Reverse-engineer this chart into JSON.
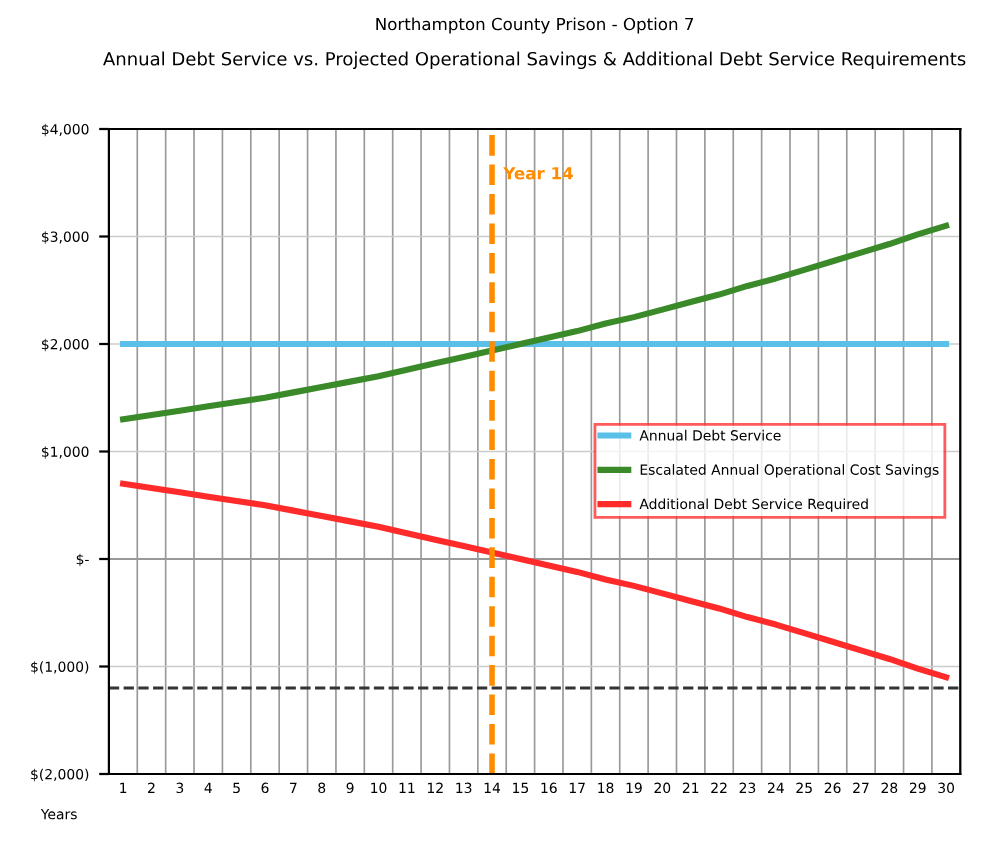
{
  "chart_data": {
    "type": "line",
    "title": "Northampton County Prison - Option 7",
    "subtitle": "Annual Debt Service vs. Projected Operational Savings & Additional Debt Service Requirements",
    "xlabel": "Years",
    "categories": [
      "1",
      "2",
      "3",
      "4",
      "5",
      "6",
      "7",
      "8",
      "9",
      "10",
      "11",
      "12",
      "13",
      "14",
      "15",
      "16",
      "17",
      "18",
      "19",
      "20",
      "21",
      "22",
      "23",
      "24",
      "25",
      "26",
      "27",
      "28",
      "29",
      "30"
    ],
    "series": [
      {
        "name": "Annual Debt Service",
        "color": "#5bc0e8",
        "values": [
          2000,
          2000,
          2000,
          2000,
          2000,
          2000,
          2000,
          2000,
          2000,
          2000,
          2000,
          2000,
          2000,
          2000,
          2000,
          2000,
          2000,
          2000,
          2000,
          2000,
          2000,
          2000,
          2000,
          2000,
          2000,
          2000,
          2000,
          2000,
          2000,
          2000
        ]
      },
      {
        "name": "Escalated Annual Operational Cost Savings",
        "color": "#3a8a2a",
        "values": [
          1300,
          1340,
          1380,
          1420,
          1460,
          1500,
          1550,
          1600,
          1650,
          1700,
          1760,
          1820,
          1880,
          1940,
          2000,
          2060,
          2120,
          2190,
          2250,
          2320,
          2390,
          2460,
          2540,
          2610,
          2690,
          2770,
          2850,
          2930,
          3020,
          3100
        ]
      },
      {
        "name": "Additional Debt Service Required",
        "color": "#ff2a2a",
        "values": [
          700,
          660,
          620,
          580,
          540,
          500,
          450,
          400,
          350,
          300,
          240,
          180,
          120,
          60,
          0,
          -60,
          -120,
          -190,
          -250,
          -320,
          -390,
          -460,
          -540,
          -610,
          -690,
          -770,
          -850,
          -930,
          -1020,
          -1100
        ]
      }
    ],
    "ylim": [
      -2000,
      4000
    ],
    "yticks": [
      {
        "value": 4000,
        "label": "$4,000"
      },
      {
        "value": 3000,
        "label": "$3,000"
      },
      {
        "value": 2000,
        "label": "$2,000"
      },
      {
        "value": 1000,
        "label": "$1,000"
      },
      {
        "value": 0,
        "label": "$-"
      },
      {
        "value": -1000,
        "label": "$(1,000)"
      },
      {
        "value": -2000,
        "label": "$(2,000)"
      }
    ],
    "ref_lines": [
      {
        "axis": "x",
        "value": "14",
        "label": "Year 14",
        "color": "#ff8c00",
        "line_style": "dashed"
      },
      {
        "axis": "y",
        "value": -1200,
        "color": "#333333",
        "line_style": "dashed"
      }
    ],
    "grid": true,
    "legend": "right",
    "marker": "none",
    "line_style": "solid"
  }
}
